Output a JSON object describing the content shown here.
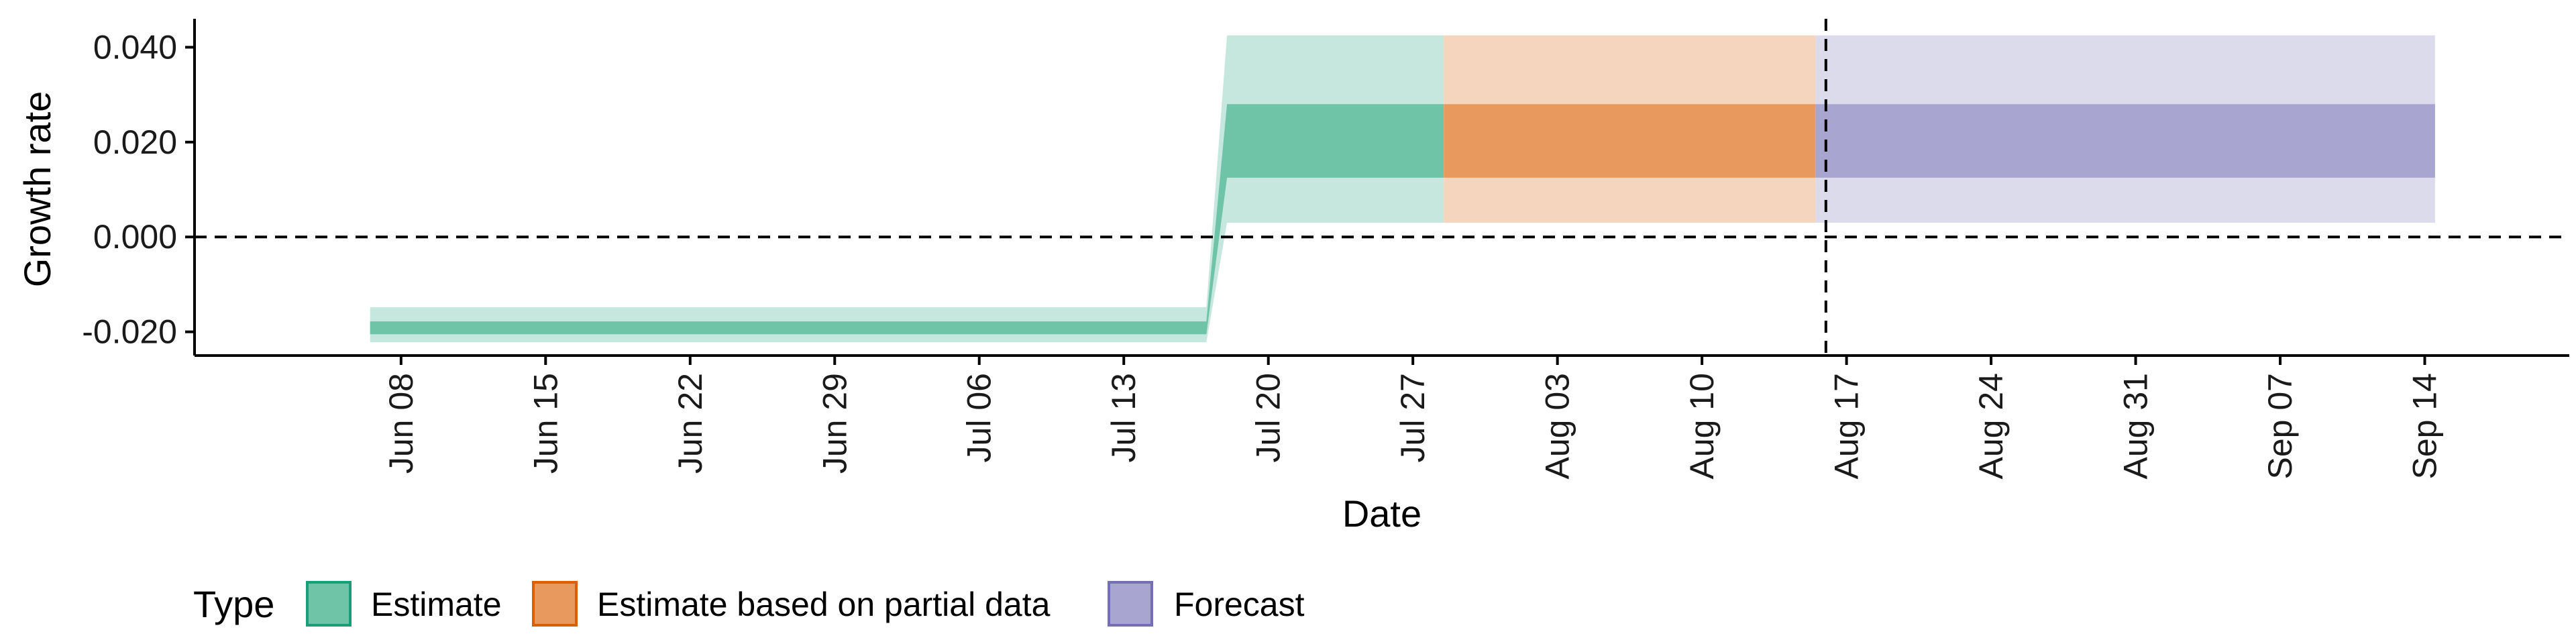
{
  "chart_data": {
    "type": "area",
    "xlabel": "Date",
    "ylabel": "Growth rate",
    "x_tick_labels": [
      "Jun 08",
      "Jun 15",
      "Jun 22",
      "Jun 29",
      "Jul 06",
      "Jul 13",
      "Jul 20",
      "Jul 27",
      "Aug 03",
      "Aug 10",
      "Aug 17",
      "Aug 24",
      "Aug 31",
      "Sep 07",
      "Sep 14"
    ],
    "x_tick_dates": [
      "2020-06-08",
      "2020-06-15",
      "2020-06-22",
      "2020-06-29",
      "2020-07-06",
      "2020-07-13",
      "2020-07-20",
      "2020-07-27",
      "2020-08-03",
      "2020-08-10",
      "2020-08-17",
      "2020-08-24",
      "2020-08-31",
      "2020-09-07",
      "2020-09-14"
    ],
    "xlim": [
      "2020-05-29",
      "2020-09-21"
    ],
    "y_tick_labels": [
      "-0.020",
      "0.000",
      "0.020",
      "0.040"
    ],
    "y_tick_values": [
      -0.02,
      0.0,
      0.02,
      0.04
    ],
    "ylim": [
      -0.025,
      0.046
    ],
    "hlines": [
      0.0
    ],
    "vlines": [
      "2020-08-16"
    ],
    "grid": false,
    "legend_title": "Type",
    "legend_position": "bottom-left",
    "series": [
      {
        "name": "Estimate",
        "color": "#66C2A5",
        "points": [
          {
            "date": "2020-06-07",
            "lower90": -0.0222,
            "lower50": -0.0205,
            "upper50": -0.0178,
            "upper90": -0.0148
          },
          {
            "date": "2020-07-17",
            "lower90": -0.0222,
            "lower50": -0.0205,
            "upper50": -0.0178,
            "upper90": -0.0148
          },
          {
            "date": "2020-07-18",
            "lower90": 0.003,
            "lower50": 0.0125,
            "upper50": 0.028,
            "upper90": 0.0425
          },
          {
            "date": "2020-07-28",
            "lower90": 0.003,
            "lower50": 0.0125,
            "upper50": 0.028,
            "upper90": 0.0425
          }
        ]
      },
      {
        "name": "Estimate based on partial data",
        "color": "#FC8D62",
        "points": [
          {
            "date": "2020-07-29",
            "lower90": 0.003,
            "lower50": 0.0125,
            "upper50": 0.028,
            "upper90": 0.0425
          },
          {
            "date": "2020-08-15",
            "lower90": 0.003,
            "lower50": 0.0125,
            "upper50": 0.028,
            "upper90": 0.0425
          }
        ]
      },
      {
        "name": "Forecast",
        "color": "#8DA0CB",
        "points": [
          {
            "date": "2020-08-16",
            "lower90": 0.003,
            "lower50": 0.0125,
            "upper50": 0.028,
            "upper90": 0.0425
          },
          {
            "date": "2020-09-14",
            "lower90": 0.003,
            "lower50": 0.0125,
            "upper50": 0.028,
            "upper90": 0.0425
          }
        ]
      }
    ]
  },
  "legend": {
    "title": "Type",
    "items": [
      {
        "label": "Estimate",
        "fill": "#6FC3A7",
        "stroke": "#1B9E77"
      },
      {
        "label": "Estimate based on partial data",
        "fill": "#E89A5E",
        "stroke": "#D95F02"
      },
      {
        "label": "Forecast",
        "fill": "#A8A5D1",
        "stroke": "#7570B3"
      }
    ]
  },
  "colors": {
    "estimate_inner": "#6FC3A7",
    "estimate_outer": "#C5E7DD",
    "partial_inner": "#E89A5E",
    "partial_outer": "#F6D5BE",
    "forecast_inner": "#A8A5D1",
    "forecast_outer": "#DBDBEC"
  }
}
